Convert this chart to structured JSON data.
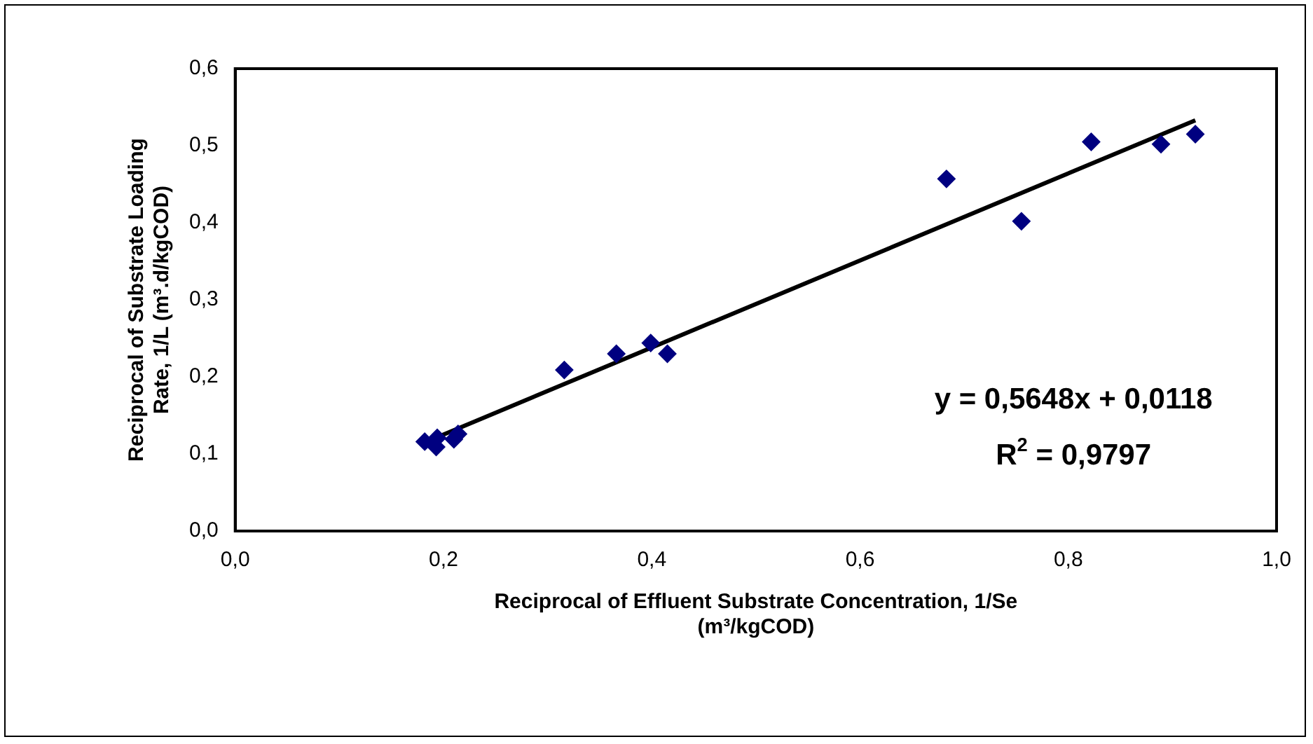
{
  "chart_data": {
    "type": "scatter",
    "xlabel": "Reciprocal of Effluent Substrate Concentration, 1/Se (m³/kgCOD)",
    "ylabel": "Reciprocal of Substrate Loading Rate, 1/L (m³.d/kgCOD)",
    "xlim": [
      0,
      1
    ],
    "ylim": [
      0,
      0.6
    ],
    "xticks": [
      {
        "value": 0,
        "label": "0,0"
      },
      {
        "value": 0.2,
        "label": "0,2"
      },
      {
        "value": 0.4,
        "label": "0,4"
      },
      {
        "value": 0.6,
        "label": "0,6"
      },
      {
        "value": 0.8,
        "label": "0,8"
      },
      {
        "value": 1,
        "label": "1,0"
      }
    ],
    "yticks": [
      {
        "value": 0,
        "label": "0,0"
      },
      {
        "value": 0.1,
        "label": "0,1"
      },
      {
        "value": 0.2,
        "label": "0,2"
      },
      {
        "value": 0.3,
        "label": "0,3"
      },
      {
        "value": 0.4,
        "label": "0,4"
      },
      {
        "value": 0.5,
        "label": "0,5"
      },
      {
        "value": 0.6,
        "label": "0,6"
      }
    ],
    "series": [
      {
        "type": "scatter",
        "color": "#000080",
        "marker": "diamond",
        "x": [
          0.182,
          0.193,
          0.194,
          0.21,
          0.214,
          0.316,
          0.366,
          0.399,
          0.415,
          0.683,
          0.755,
          0.822,
          0.889,
          0.922
        ],
        "values": [
          0.116,
          0.109,
          0.121,
          0.119,
          0.126,
          0.209,
          0.23,
          0.244,
          0.23,
          0.457,
          0.402,
          0.505,
          0.502,
          0.515
        ]
      },
      {
        "type": "line",
        "color": "#000000",
        "marker": "none",
        "line_style": "solid",
        "x": [
          0.182,
          0.922
        ],
        "values": [
          0.115,
          0.533
        ]
      }
    ],
    "annotations": [
      "y = 0,5648x + 0,0118",
      "R$^{2}$ = 0,9797"
    ],
    "grid": false,
    "legend": false
  }
}
